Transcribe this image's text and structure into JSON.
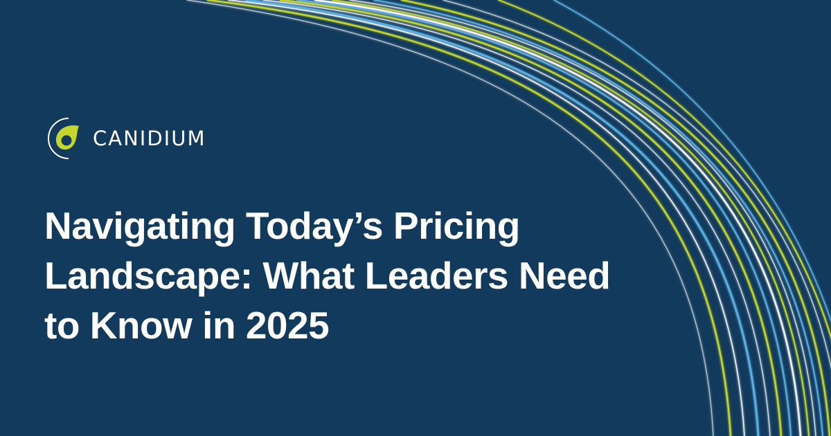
{
  "brand": {
    "name": "CANIDIUM",
    "logo_icon": "canidium-leaf-icon"
  },
  "headline": {
    "lines": [
      "Navigating Today’s Pricing",
      "Landscape: What Leaders Need",
      "to Know in 2025"
    ]
  },
  "colors": {
    "background": "#113a5c",
    "accent_lime": "#c4d62e",
    "accent_blue": "#5aaee0",
    "line_white": "#ffffff"
  },
  "decor": {
    "icon": "flowing-lines-graphic"
  }
}
